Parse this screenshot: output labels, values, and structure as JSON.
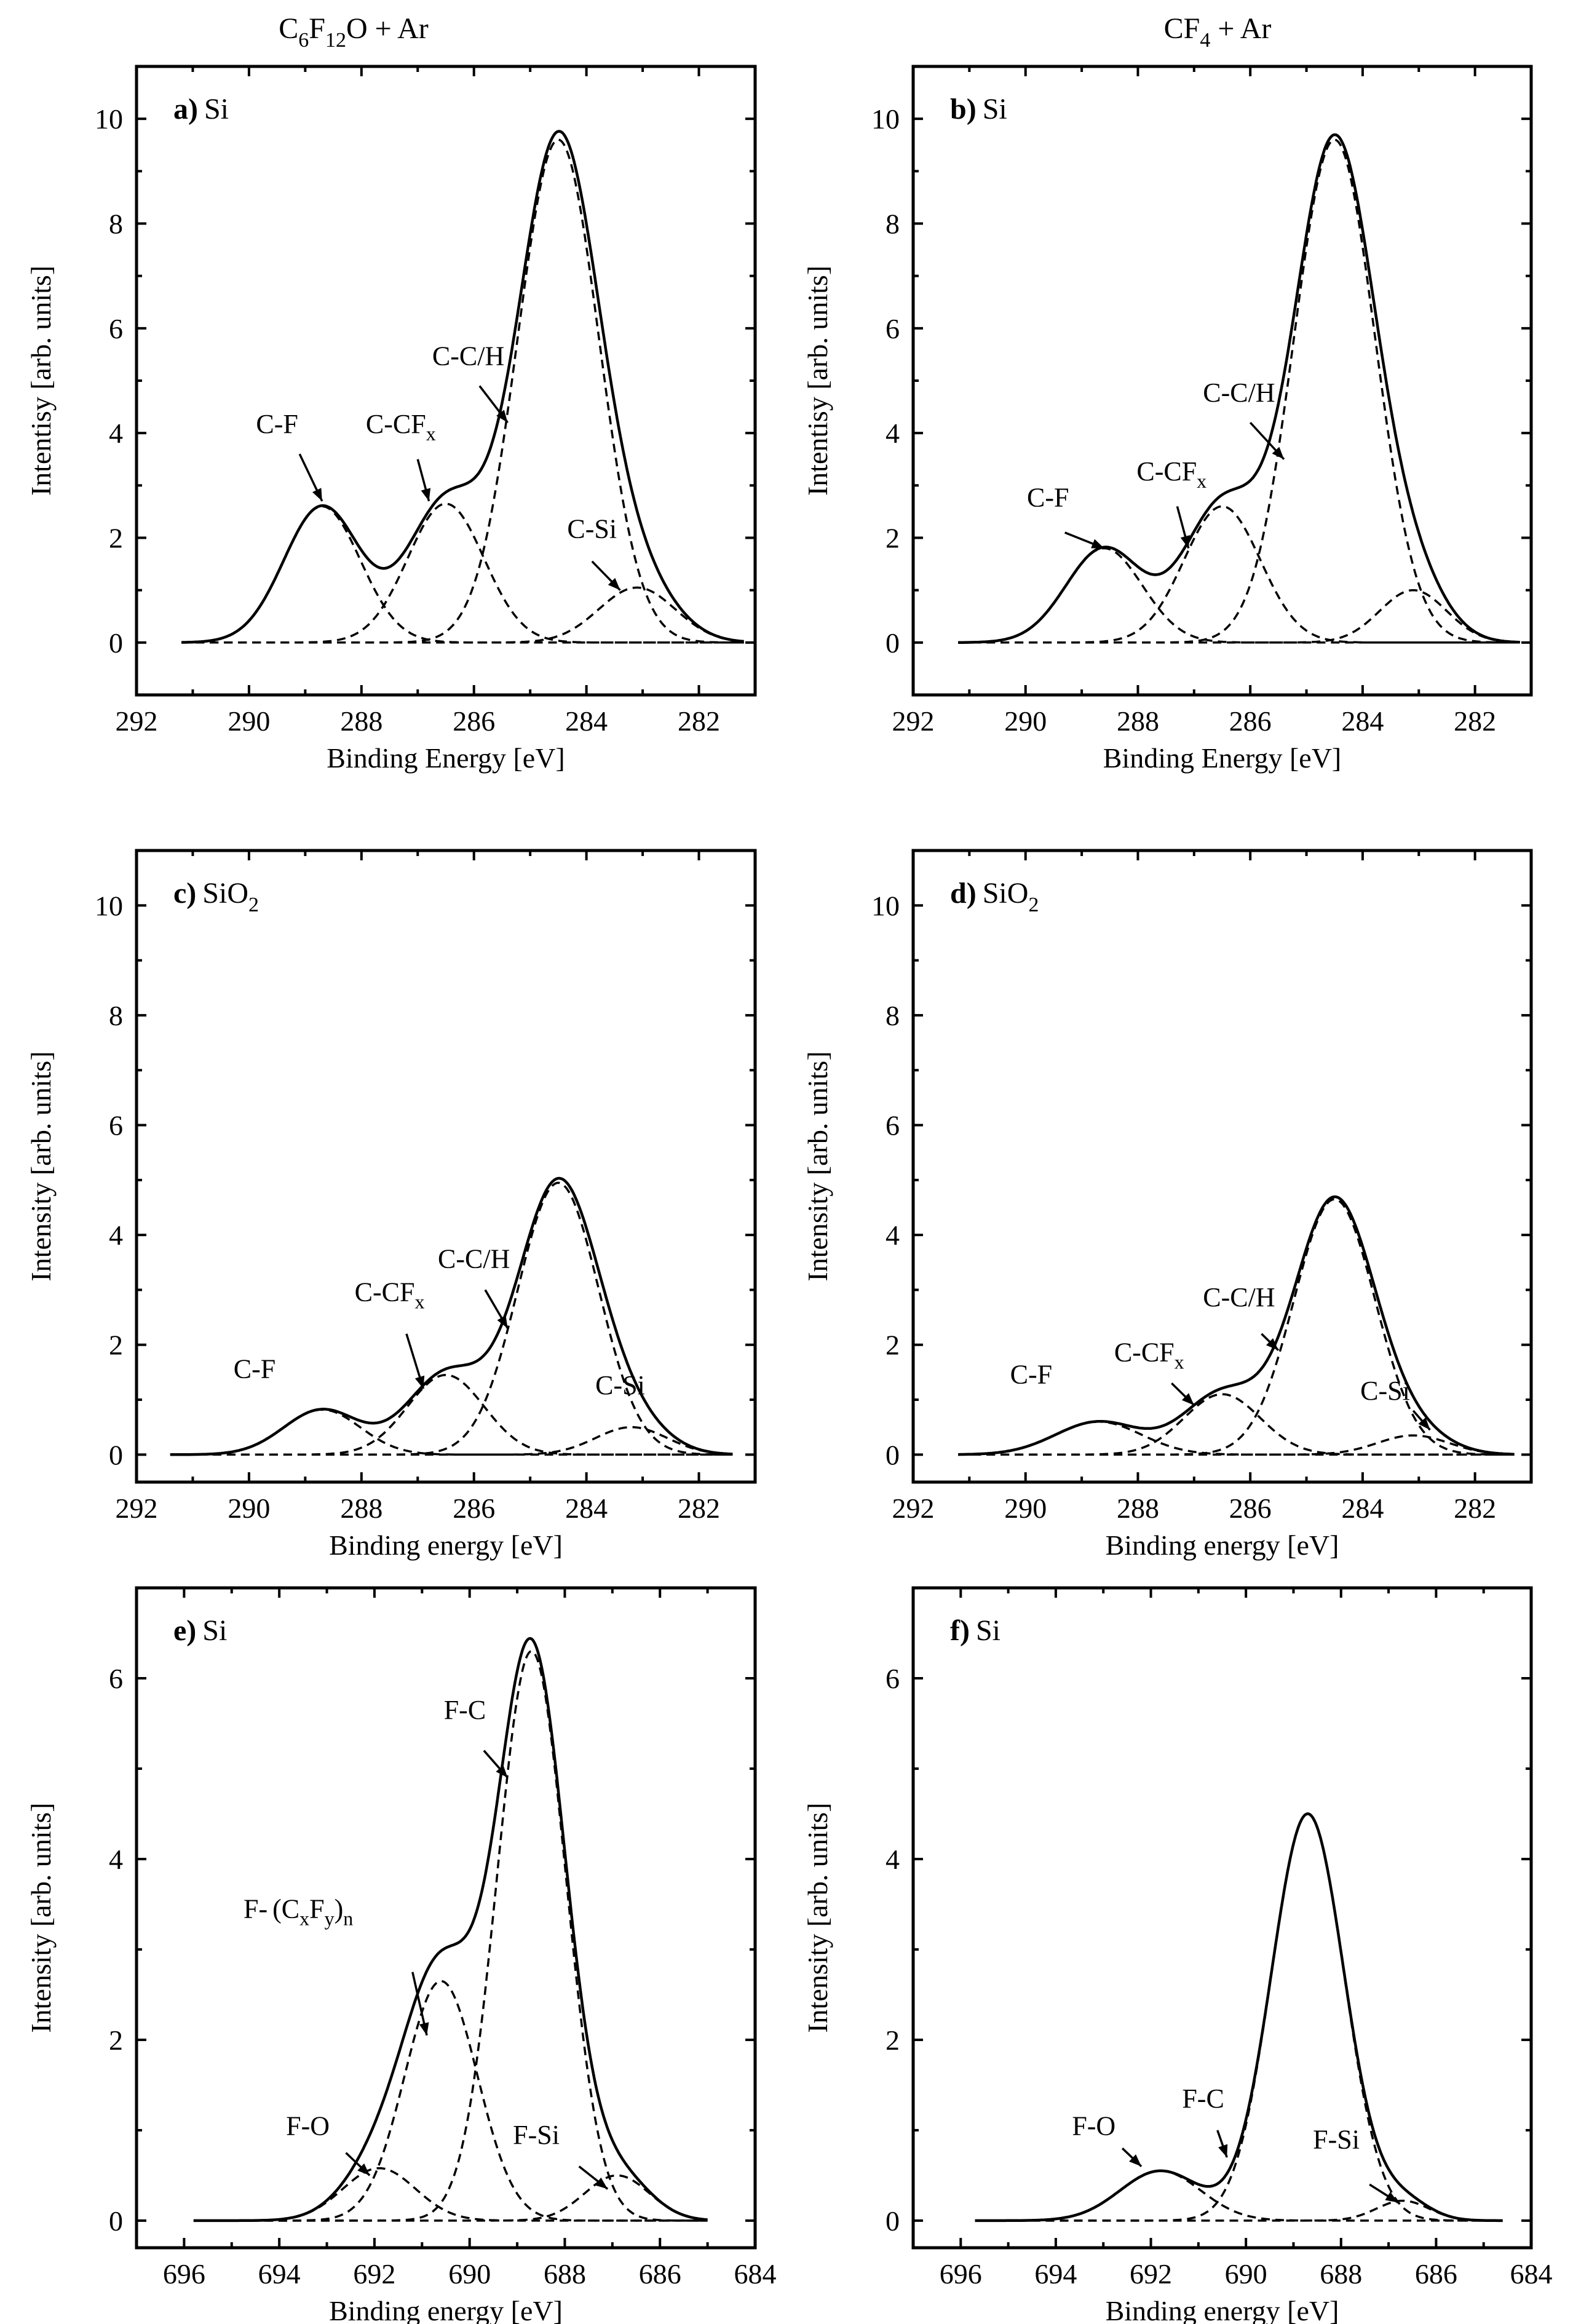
{
  "column_headers": {
    "left_base": "C",
    "left_sub1": "6",
    "left_mid": "F",
    "left_sub2": "12",
    "left_tail": "O + Ar",
    "right_base": "CF",
    "right_sub1": "4",
    "right_tail": " + Ar"
  },
  "chart_data": [
    {
      "id": "a",
      "type": "line",
      "panel_label": "a)",
      "material": "Si",
      "material_sub": "",
      "xlabel": "Binding Energy [eV]",
      "ylabel": "Intentisy [arb. units]",
      "xlim": [
        292,
        281
      ],
      "ylim": [
        -1,
        11
      ],
      "xticks": [
        292,
        290,
        288,
        286,
        284,
        282
      ],
      "yticks": [
        0,
        2,
        4,
        6,
        8,
        10
      ],
      "range": [
        291.2,
        281.2
      ],
      "components": [
        {
          "name": "C-F",
          "center": 288.7,
          "amp": 2.6,
          "fwhm": 1.6
        },
        {
          "name": "C-CFx",
          "center": 286.5,
          "amp": 2.65,
          "fwhm": 1.6
        },
        {
          "name": "C-C/H",
          "center": 284.5,
          "amp": 9.6,
          "fwhm": 1.7
        },
        {
          "name": "C-Si",
          "center": 283.1,
          "amp": 1.05,
          "fwhm": 1.6
        }
      ],
      "annotations": [
        {
          "text": "C-F",
          "sub": "",
          "pos": [
            289.5,
            4.0
          ],
          "tail": [
            289.1,
            3.6
          ],
          "head": [
            288.7,
            2.7
          ]
        },
        {
          "text": "C-CF",
          "sub": "x",
          "pos": [
            287.3,
            4.0
          ],
          "tail": [
            287.0,
            3.5
          ],
          "head": [
            286.8,
            2.7
          ]
        },
        {
          "text": "C-C/H",
          "sub": "",
          "pos": [
            286.1,
            5.3
          ],
          "tail": [
            285.9,
            4.9
          ],
          "head": [
            285.4,
            4.2
          ]
        },
        {
          "text": "C-Si",
          "sub": "",
          "pos": [
            283.9,
            2.0
          ],
          "tail": [
            283.9,
            1.55
          ],
          "head": [
            283.4,
            1.0
          ]
        }
      ]
    },
    {
      "id": "b",
      "type": "line",
      "panel_label": "b)",
      "material": "Si",
      "material_sub": "",
      "xlabel": "Binding Energy [eV]",
      "ylabel": "Intentisy [arb. units]",
      "xlim": [
        292,
        281
      ],
      "ylim": [
        -1,
        11
      ],
      "xticks": [
        292,
        290,
        288,
        286,
        284,
        282
      ],
      "yticks": [
        0,
        2,
        4,
        6,
        8,
        10
      ],
      "range": [
        291.2,
        281.2
      ],
      "components": [
        {
          "name": "C-F",
          "center": 288.6,
          "amp": 1.8,
          "fwhm": 1.6
        },
        {
          "name": "C-CFx",
          "center": 286.5,
          "amp": 2.6,
          "fwhm": 1.6
        },
        {
          "name": "C-C/H",
          "center": 284.5,
          "amp": 9.6,
          "fwhm": 1.7
        },
        {
          "name": "C-Si",
          "center": 283.1,
          "amp": 1.0,
          "fwhm": 1.4
        }
      ],
      "annotations": [
        {
          "text": "C-F",
          "sub": "",
          "pos": [
            289.6,
            2.6
          ],
          "tail": [
            289.3,
            2.1
          ],
          "head": [
            288.6,
            1.8
          ]
        },
        {
          "text": "C-CF",
          "sub": "x",
          "pos": [
            287.4,
            3.1
          ],
          "tail": [
            287.3,
            2.6
          ],
          "head": [
            287.1,
            1.8
          ]
        },
        {
          "text": "C-C/H",
          "sub": "",
          "pos": [
            286.2,
            4.6
          ],
          "tail": [
            286.0,
            4.2
          ],
          "head": [
            285.4,
            3.5
          ]
        }
      ]
    },
    {
      "id": "c",
      "type": "line",
      "panel_label": "c)",
      "material": "SiO",
      "material_sub": "2",
      "xlabel": "Binding energy [eV]",
      "ylabel": "Intensity [arb. units]",
      "xlim": [
        292,
        281
      ],
      "ylim": [
        -0.5,
        11
      ],
      "xticks": [
        292,
        290,
        288,
        286,
        284,
        282
      ],
      "yticks": [
        0,
        2,
        4,
        6,
        8,
        10
      ],
      "range": [
        291.4,
        281.4
      ],
      "components": [
        {
          "name": "C-F",
          "center": 288.7,
          "amp": 0.82,
          "fwhm": 1.6
        },
        {
          "name": "C-CFx",
          "center": 286.5,
          "amp": 1.45,
          "fwhm": 1.6
        },
        {
          "name": "C-C/H",
          "center": 284.5,
          "amp": 4.95,
          "fwhm": 1.7
        },
        {
          "name": "C-Si",
          "center": 283.2,
          "amp": 0.5,
          "fwhm": 1.5
        }
      ],
      "annotations": [
        {
          "text": "C-F",
          "sub": "",
          "pos": [
            289.9,
            1.4
          ],
          "tail": null,
          "head": null
        },
        {
          "text": "C-CF",
          "sub": "x",
          "pos": [
            287.5,
            2.8
          ],
          "tail": [
            287.2,
            2.2
          ],
          "head": [
            286.9,
            1.2
          ]
        },
        {
          "text": "C-C/H",
          "sub": "",
          "pos": [
            286.0,
            3.4
          ],
          "tail": [
            285.8,
            3.0
          ],
          "head": [
            285.4,
            2.3
          ]
        },
        {
          "text": "C-Si",
          "sub": "",
          "pos": [
            283.4,
            1.1
          ],
          "tail": null,
          "head": null
        }
      ]
    },
    {
      "id": "d",
      "type": "line",
      "panel_label": "d)",
      "material": "SiO",
      "material_sub": "2",
      "xlabel": "Binding energy [eV]",
      "ylabel": "Intensity [arb. units]",
      "xlim": [
        292,
        281
      ],
      "ylim": [
        -0.5,
        11
      ],
      "xticks": [
        292,
        290,
        288,
        286,
        284,
        282
      ],
      "yticks": [
        0,
        2,
        4,
        6,
        8,
        10
      ],
      "range": [
        291.2,
        281.3
      ],
      "components": [
        {
          "name": "C-F",
          "center": 288.7,
          "amp": 0.6,
          "fwhm": 1.8
        },
        {
          "name": "C-CFx",
          "center": 286.5,
          "amp": 1.1,
          "fwhm": 1.6
        },
        {
          "name": "C-C/H",
          "center": 284.5,
          "amp": 4.65,
          "fwhm": 1.7
        },
        {
          "name": "C-Si",
          "center": 283.1,
          "amp": 0.35,
          "fwhm": 1.5
        }
      ],
      "annotations": [
        {
          "text": "C-F",
          "sub": "",
          "pos": [
            289.9,
            1.3
          ],
          "tail": null,
          "head": null
        },
        {
          "text": "C-CF",
          "sub": "x",
          "pos": [
            287.8,
            1.7
          ],
          "tail": [
            287.4,
            1.3
          ],
          "head": [
            287.0,
            0.9
          ]
        },
        {
          "text": "C-C/H",
          "sub": "",
          "pos": [
            286.2,
            2.7
          ],
          "tail": [
            285.8,
            2.2
          ],
          "head": [
            285.5,
            1.9
          ]
        },
        {
          "text": "C-Si",
          "sub": "",
          "pos": [
            283.6,
            1.0
          ],
          "tail": [
            283.1,
            0.8
          ],
          "head": [
            282.8,
            0.45
          ]
        }
      ]
    },
    {
      "id": "e",
      "type": "line",
      "panel_label": "e)",
      "material": "Si",
      "material_sub": "",
      "xlabel": "Binding energy [eV]",
      "ylabel": "Intensity [arb. units]",
      "xlim": [
        697,
        684
      ],
      "ylim": [
        -0.3,
        7
      ],
      "xticks": [
        696,
        694,
        692,
        690,
        688,
        686,
        684
      ],
      "yticks": [
        0,
        2,
        4,
        6
      ],
      "range": [
        695.8,
        685.0
      ],
      "components": [
        {
          "name": "F-O",
          "center": 691.9,
          "amp": 0.58,
          "fwhm": 1.8
        },
        {
          "name": "F-(CxFy)n",
          "center": 690.6,
          "amp": 2.65,
          "fwhm": 1.8
        },
        {
          "name": "F-C",
          "center": 688.7,
          "amp": 6.3,
          "fwhm": 1.7
        },
        {
          "name": "F-Si",
          "center": 686.9,
          "amp": 0.5,
          "fwhm": 1.6
        }
      ],
      "annotations": [
        {
          "text": "F-O",
          "sub": "",
          "pos": [
            693.4,
            0.95
          ],
          "tail": [
            692.6,
            0.75
          ],
          "head": [
            692.1,
            0.5
          ]
        },
        {
          "text": "F-",
          "sub": "",
          "pos": [
            693.6,
            3.35
          ],
          "tail": [
            691.2,
            2.75
          ],
          "head": [
            690.9,
            2.05
          ],
          "extra": "(CxFy)n"
        },
        {
          "text": "F-C",
          "sub": "",
          "pos": [
            690.1,
            5.55
          ],
          "tail": [
            689.7,
            5.2
          ],
          "head": [
            689.2,
            4.9
          ]
        },
        {
          "text": "F-Si",
          "sub": "",
          "pos": [
            688.6,
            0.85
          ],
          "tail": [
            687.7,
            0.6
          ],
          "head": [
            687.1,
            0.35
          ]
        }
      ]
    },
    {
      "id": "f",
      "type": "line",
      "panel_label": "f)",
      "material": "Si",
      "material_sub": "",
      "xlabel": "Binding energy [eV]",
      "ylabel": "Intensity [arb. units]",
      "xlim": [
        697,
        684
      ],
      "ylim": [
        -0.3,
        7
      ],
      "xticks": [
        696,
        694,
        692,
        690,
        688,
        686,
        684
      ],
      "yticks": [
        0,
        2,
        4,
        6
      ],
      "range": [
        695.7,
        684.6
      ],
      "components": [
        {
          "name": "F-O",
          "center": 691.8,
          "amp": 0.55,
          "fwhm": 2.0
        },
        {
          "name": "F-C",
          "center": 688.7,
          "amp": 4.5,
          "fwhm": 1.8
        },
        {
          "name": "F-Si",
          "center": 686.7,
          "amp": 0.22,
          "fwhm": 1.3
        }
      ],
      "annotations": [
        {
          "text": "F-O",
          "sub": "",
          "pos": [
            693.2,
            0.95
          ],
          "tail": [
            692.6,
            0.8
          ],
          "head": [
            692.2,
            0.6
          ]
        },
        {
          "text": "F-C",
          "sub": "",
          "pos": [
            690.9,
            1.25
          ],
          "tail": [
            690.6,
            1.0
          ],
          "head": [
            690.4,
            0.7
          ]
        },
        {
          "text": "F-Si",
          "sub": "",
          "pos": [
            688.1,
            0.8
          ],
          "tail": [
            687.4,
            0.4
          ],
          "head": [
            686.8,
            0.2
          ]
        }
      ]
    }
  ]
}
